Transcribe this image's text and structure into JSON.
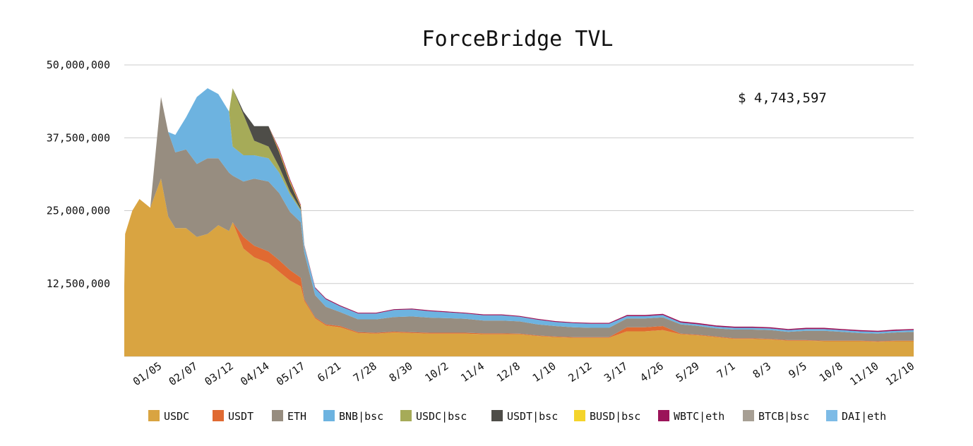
{
  "chart_data": {
    "type": "area",
    "stacked": true,
    "title": "ForceBridge TVL",
    "annotation": "$ 4,743,597",
    "xlabel": "",
    "ylabel": "",
    "ylim": [
      0,
      50000000
    ],
    "y_ticks": [
      "12,500,000",
      "25,000,000",
      "37,500,000",
      "50,000,000"
    ],
    "y_tick_values": [
      12500000,
      25000000,
      37500000,
      50000000
    ],
    "x_ticks": [
      "01/05",
      "02/07",
      "03/12",
      "04/14",
      "05/17",
      "6/21",
      "7/28",
      "8/30",
      "10/2",
      "11/4",
      "12/8",
      "1/10",
      "2/12",
      "3/17",
      "4/26",
      "5/29",
      "7/1",
      "8/3",
      "9/5",
      "10/8",
      "11/10",
      "12/10"
    ],
    "grid": "horizontal",
    "legend_position": "bottom",
    "colors": {
      "USDC": "#d9a441",
      "USDT": "#e06a32",
      "ETH": "#978d80",
      "BNB|bsc": "#6db3e0",
      "USDC|bsc": "#a6ab58",
      "USDT|bsc": "#4e4d48",
      "BUSD|bsc": "#f4d42b",
      "WBTC|eth": "#9b1459",
      "BTCB|bsc": "#a79f94",
      "DAI|eth": "#7dbbe6"
    },
    "x": [
      -1.2,
      -1,
      -0.8,
      -0.6,
      -0.3,
      0,
      0.2,
      0.4,
      0.7,
      1,
      1.3,
      1.6,
      1.9,
      2,
      2.3,
      2.6,
      3,
      3.3,
      3.6,
      3.9,
      4,
      4.3,
      4.6,
      5,
      5.5,
      6,
      6.5,
      7,
      7.5,
      8,
      8.5,
      9,
      9.5,
      10,
      10.5,
      11,
      11.5,
      12,
      12.5,
      13,
      13.5,
      14,
      14.5,
      15,
      15.5,
      16,
      16.5,
      17,
      17.5,
      18,
      18.5,
      19,
      19.5,
      20,
      20.5,
      21
    ],
    "series": [
      {
        "name": "USDC",
        "values": [
          12000000,
          21000000,
          25000000,
          27000000,
          25500000,
          30500000,
          24000000,
          22000000,
          22000000,
          20500000,
          21000000,
          22500000,
          21500000,
          23000000,
          18500000,
          17000000,
          16000000,
          14500000,
          13000000,
          12000000,
          9500000,
          6500000,
          5300000,
          5000000,
          4000000,
          3900000,
          4100000,
          4000000,
          3900000,
          3900000,
          3900000,
          3800000,
          3800000,
          3800000,
          3500000,
          3300000,
          3200000,
          3200000,
          3200000,
          4300000,
          4300000,
          4500000,
          3800000,
          3600000,
          3300000,
          3000000,
          3000000,
          2900000,
          2700000,
          2700000,
          2600000,
          2600000,
          2600000,
          2500000,
          2600000,
          2600000
        ]
      },
      {
        "name": "USDT",
        "values": [
          0,
          0,
          0,
          0,
          0,
          0,
          0,
          0,
          0,
          0,
          0,
          0,
          0,
          0,
          2000000,
          2000000,
          2000000,
          2000000,
          1800000,
          1500000,
          300000,
          200000,
          200000,
          200000,
          150000,
          150000,
          150000,
          150000,
          150000,
          150000,
          150000,
          150000,
          150000,
          100000,
          100000,
          100000,
          100000,
          100000,
          100000,
          700000,
          700000,
          700000,
          100000,
          100000,
          100000,
          100000,
          100000,
          100000,
          100000,
          100000,
          100000,
          100000,
          100000,
          100000,
          100000,
          100000
        ]
      },
      {
        "name": "ETH",
        "values": [
          0,
          0,
          0,
          0,
          0,
          14000000,
          14500000,
          13000000,
          13500000,
          12500000,
          13000000,
          11500000,
          10000000,
          8000000,
          9500000,
          11500000,
          12000000,
          11500000,
          10000000,
          9500000,
          8000000,
          3800000,
          3000000,
          2400000,
          2200000,
          2300000,
          2500000,
          2700000,
          2600000,
          2500000,
          2400000,
          2200000,
          2200000,
          2100000,
          1900000,
          1800000,
          1700000,
          1600000,
          1600000,
          1500000,
          1500000,
          1500000,
          1600000,
          1500000,
          1400000,
          1500000,
          1500000,
          1500000,
          1400000,
          1600000,
          1700000,
          1500000,
          1300000,
          1300000,
          1400000,
          1500000
        ]
      },
      {
        "name": "BNB|bsc",
        "values": [
          0,
          0,
          0,
          0,
          0,
          0,
          0,
          3000000,
          5500000,
          11500000,
          12000000,
          11000000,
          10500000,
          5000000,
          4500000,
          4000000,
          4000000,
          3500000,
          3000000,
          2000000,
          1000000,
          1200000,
          1300000,
          1000000,
          1000000,
          1000000,
          1200000,
          1200000,
          1100000,
          1000000,
          900000,
          900000,
          900000,
          800000,
          800000,
          700000,
          700000,
          700000,
          700000,
          400000,
          400000,
          400000,
          300000,
          300000,
          300000,
          300000,
          300000,
          300000,
          300000,
          300000,
          300000,
          300000,
          300000,
          300000,
          300000,
          300000
        ]
      },
      {
        "name": "USDC|bsc",
        "values": [
          0,
          0,
          0,
          0,
          0,
          0,
          0,
          0,
          0,
          0,
          0,
          0,
          0,
          10000000,
          7000000,
          2500000,
          2000000,
          1000000,
          500000,
          200000,
          50000,
          0,
          0,
          0,
          0,
          0,
          0,
          0,
          0,
          0,
          0,
          0,
          0,
          0,
          0,
          0,
          0,
          0,
          0,
          0,
          0,
          0,
          0,
          0,
          0,
          0,
          0,
          0,
          0,
          0,
          0,
          0,
          0,
          0,
          0,
          0
        ]
      },
      {
        "name": "USDT|bsc",
        "values": [
          0,
          0,
          0,
          0,
          0,
          0,
          0,
          0,
          0,
          0,
          0,
          0,
          0,
          0,
          500000,
          2500000,
          3500000,
          2500000,
          1500000,
          400000,
          100000,
          0,
          0,
          0,
          0,
          0,
          0,
          0,
          0,
          0,
          0,
          0,
          0,
          0,
          0,
          0,
          0,
          0,
          0,
          0,
          0,
          0,
          0,
          0,
          0,
          0,
          0,
          0,
          0,
          0,
          0,
          0,
          0,
          0,
          0,
          0
        ]
      },
      {
        "name": "BUSD|bsc",
        "values": [
          0,
          0,
          0,
          0,
          0,
          0,
          0,
          0,
          0,
          0,
          0,
          0,
          0,
          0,
          0,
          0,
          0,
          300000,
          300000,
          200000,
          50000,
          0,
          0,
          0,
          0,
          0,
          0,
          0,
          0,
          0,
          0,
          0,
          0,
          0,
          0,
          0,
          0,
          0,
          0,
          0,
          0,
          0,
          0,
          0,
          0,
          0,
          0,
          0,
          0,
          0,
          0,
          0,
          0,
          0,
          0,
          0
        ]
      },
      {
        "name": "WBTC|eth",
        "values": [
          0,
          0,
          0,
          0,
          0,
          0,
          0,
          0,
          0,
          0,
          0,
          0,
          0,
          0,
          0,
          0,
          0,
          300000,
          300000,
          200000,
          100000,
          150000,
          150000,
          150000,
          150000,
          150000,
          150000,
          150000,
          150000,
          150000,
          150000,
          150000,
          150000,
          150000,
          150000,
          150000,
          150000,
          150000,
          150000,
          200000,
          200000,
          200000,
          200000,
          200000,
          200000,
          200000,
          200000,
          200000,
          200000,
          200000,
          200000,
          200000,
          200000,
          200000,
          200000,
          200000
        ]
      },
      {
        "name": "BTCB|bsc",
        "values": [
          0,
          0,
          0,
          0,
          0,
          0,
          0,
          0,
          0,
          0,
          0,
          0,
          0,
          0,
          0,
          0,
          0,
          0,
          0,
          0,
          0,
          0,
          0,
          0,
          0,
          0,
          0,
          0,
          0,
          0,
          0,
          0,
          0,
          0,
          0,
          0,
          0,
          0,
          0,
          0,
          0,
          0,
          0,
          0,
          0,
          0,
          0,
          0,
          0,
          0,
          0,
          0,
          0,
          0,
          0,
          0
        ]
      },
      {
        "name": "DAI|eth",
        "values": [
          0,
          0,
          0,
          0,
          0,
          0,
          0,
          0,
          0,
          0,
          0,
          0,
          0,
          0,
          0,
          0,
          0,
          0,
          0,
          0,
          0,
          0,
          0,
          0,
          0,
          0,
          0,
          0,
          0,
          0,
          0,
          0,
          0,
          0,
          0,
          0,
          0,
          0,
          0,
          0,
          0,
          0,
          0,
          0,
          0,
          0,
          0,
          0,
          0,
          0,
          0,
          0,
          0,
          0,
          0,
          0
        ]
      }
    ]
  }
}
